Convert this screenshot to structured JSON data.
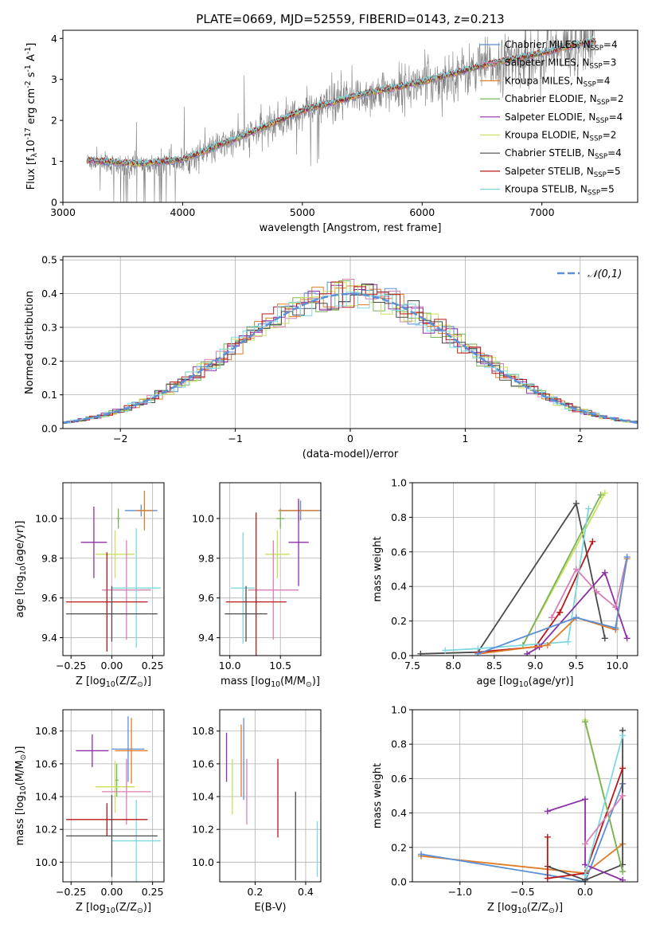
{
  "chart_data": [
    {
      "type": "line",
      "title": "PLATE=0669, MJD=52559, FIBERID=0143, z=0.213",
      "xlabel": "wavelength [Angstrom, rest frame]",
      "ylabel": "Flux [f$_\\lambda$10$^{-17}$ erg cm$^{-2}$ s$^{-1}$ A$^{-1}$]",
      "xlim": [
        3000,
        7800
      ],
      "ylim": [
        0,
        4.2
      ],
      "xticks": [
        3000,
        4000,
        5000,
        6000,
        7000
      ],
      "yticks": [
        0,
        1,
        2,
        3,
        4
      ],
      "data_range": [
        3200,
        7450
      ],
      "grid": false,
      "legend_position": "top-right",
      "series": [
        {
          "name": "Chabrier MILES, N$_{SSP}$=4",
          "color": "#5b8fd6",
          "y_at": [
            [
              3200,
              1.0
            ],
            [
              3600,
              0.9
            ],
            [
              4000,
              1.0
            ],
            [
              4600,
              1.7
            ],
            [
              5000,
              2.2
            ],
            [
              5500,
              2.6
            ],
            [
              6000,
              2.9
            ],
            [
              6500,
              3.3
            ],
            [
              7000,
              3.6
            ],
            [
              7400,
              3.9
            ]
          ]
        },
        {
          "name": "Salpeter MILES, N$_{SSP}$=3",
          "color": "#d87fb5",
          "y_at": [
            [
              3200,
              1.0
            ],
            [
              3600,
              0.9
            ],
            [
              4000,
              1.0
            ],
            [
              4600,
              1.7
            ],
            [
              5000,
              2.2
            ],
            [
              5500,
              2.6
            ],
            [
              6000,
              2.9
            ],
            [
              6500,
              3.3
            ],
            [
              7000,
              3.6
            ],
            [
              7400,
              3.9
            ]
          ]
        },
        {
          "name": "Kroupa MILES, N$_{SSP}$=4",
          "color": "#e07b28",
          "y_at": [
            [
              3200,
              1.0
            ],
            [
              3600,
              0.9
            ],
            [
              4000,
              1.0
            ],
            [
              4600,
              1.7
            ],
            [
              5000,
              2.2
            ],
            [
              5500,
              2.6
            ],
            [
              6000,
              2.9
            ],
            [
              6500,
              3.3
            ],
            [
              7000,
              3.6
            ],
            [
              7400,
              3.9
            ]
          ]
        },
        {
          "name": "Chabrier ELODIE, N$_{SSP}$=2",
          "color": "#7ab35a",
          "y_at": [
            [
              3200,
              1.0
            ],
            [
              3600,
              0.9
            ],
            [
              4000,
              1.0
            ],
            [
              4600,
              1.7
            ],
            [
              5000,
              2.2
            ],
            [
              5500,
              2.6
            ],
            [
              6000,
              2.9
            ],
            [
              6500,
              3.3
            ],
            [
              7000,
              3.6
            ],
            [
              7400,
              3.9
            ]
          ]
        },
        {
          "name": "Salpeter ELODIE, N$_{SSP}$=4",
          "color": "#8b2fa8",
          "y_at": [
            [
              3200,
              1.0
            ],
            [
              3600,
              0.9
            ],
            [
              4000,
              1.0
            ],
            [
              4600,
              1.7
            ],
            [
              5000,
              2.2
            ],
            [
              5500,
              2.6
            ],
            [
              6000,
              2.9
            ],
            [
              6500,
              3.3
            ],
            [
              7000,
              3.6
            ],
            [
              7400,
              3.9
            ]
          ]
        },
        {
          "name": "Kroupa ELODIE, N$_{SSP}$=2",
          "color": "#c8e05a",
          "y_at": [
            [
              3200,
              1.0
            ],
            [
              3600,
              0.9
            ],
            [
              4000,
              1.0
            ],
            [
              4600,
              1.7
            ],
            [
              5000,
              2.2
            ],
            [
              5500,
              2.6
            ],
            [
              6000,
              2.9
            ],
            [
              6500,
              3.3
            ],
            [
              7000,
              3.6
            ],
            [
              7400,
              3.9
            ]
          ]
        },
        {
          "name": "Chabrier STELIB, N$_{SSP}$=4",
          "color": "#4a4a4a",
          "y_at": [
            [
              3200,
              1.0
            ],
            [
              3600,
              0.9
            ],
            [
              4000,
              1.0
            ],
            [
              4600,
              1.7
            ],
            [
              5000,
              2.2
            ],
            [
              5500,
              2.6
            ],
            [
              6000,
              2.9
            ],
            [
              6500,
              3.3
            ],
            [
              7000,
              3.6
            ],
            [
              7400,
              3.9
            ]
          ]
        },
        {
          "name": "Salpeter STELIB, N$_{SSP}$=5",
          "color": "#b81818",
          "y_at": [
            [
              3200,
              1.0
            ],
            [
              3600,
              0.9
            ],
            [
              4000,
              1.0
            ],
            [
              4600,
              1.7
            ],
            [
              5000,
              2.2
            ],
            [
              5500,
              2.6
            ],
            [
              6000,
              2.9
            ],
            [
              6500,
              3.3
            ],
            [
              7000,
              3.6
            ],
            [
              7400,
              3.9
            ]
          ]
        },
        {
          "name": "Kroupa STELIB, N$_{SSP}$=5",
          "color": "#7fd8e0",
          "y_at": [
            [
              3200,
              1.0
            ],
            [
              3600,
              0.9
            ],
            [
              4000,
              1.0
            ],
            [
              4600,
              1.7
            ],
            [
              5000,
              2.2
            ],
            [
              5500,
              2.6
            ],
            [
              6000,
              2.9
            ],
            [
              6500,
              3.3
            ],
            [
              7000,
              3.6
            ],
            [
              7400,
              3.9
            ]
          ]
        }
      ],
      "data_color": "#808080"
    },
    {
      "type": "line",
      "xlabel": "(data-model)/error",
      "ylabel": "Normed distribution",
      "xlim": [
        -2.5,
        2.5
      ],
      "ylim": [
        0,
        0.51
      ],
      "xticks": [
        -2,
        -1,
        0,
        1,
        2
      ],
      "yticks": [
        0.0,
        0.1,
        0.2,
        0.3,
        0.4,
        0.5
      ],
      "grid": true,
      "legend": "$\\mathcal{N}(0,1)$",
      "legend_position": "top-right",
      "normal_color": "#5b8fd6",
      "hist_bin_width": 0.1
    },
    {
      "type": "scatter",
      "xlabel": "Z [log$_{10}$($Z/Z_\\odot$)]",
      "ylabel": "age  [log$_{10}$($age/yr$)]",
      "xlim": [
        -0.3,
        0.32
      ],
      "ylim": [
        9.31,
        10.18
      ],
      "xticks": [
        -0.25,
        0.0,
        0.25
      ],
      "yticks": [
        9.4,
        9.6,
        9.8,
        10.0
      ],
      "grid": true,
      "points": [
        {
          "color": "#5b8fd6",
          "x": 0.18,
          "xerr": 0.1,
          "y": 10.04,
          "yerr": 0.03
        },
        {
          "color": "#e07b28",
          "x": 0.2,
          "xerr": 0.05,
          "y": 10.04,
          "yerr": 0.1
        },
        {
          "color": "#7ab35a",
          "x": 0.04,
          "xerr": 0.01,
          "y": 10.0,
          "yerr": 0.05
        },
        {
          "color": "#8b2fa8",
          "x": -0.11,
          "xerr": 0.08,
          "y": 9.88,
          "yerr": 0.18
        },
        {
          "color": "#c8e05a",
          "x": 0.02,
          "xerr": 0.12,
          "y": 9.82,
          "yerr": 0.12
        },
        {
          "color": "#d87fb5",
          "x": 0.09,
          "xerr": 0.15,
          "y": 9.64,
          "yerr": 0.25
        },
        {
          "color": "#7fd8e0",
          "x": 0.15,
          "xerr": 0.15,
          "y": 9.65,
          "yerr": 0.3
        },
        {
          "color": "#b81818",
          "x": -0.03,
          "xerr": 0.25,
          "y": 9.58,
          "yerr": 0.25
        },
        {
          "color": "#4a4a4a",
          "x": 0.0,
          "xerr": 0.28,
          "y": 9.52,
          "yerr": 0.14
        }
      ]
    },
    {
      "type": "scatter",
      "xlabel": "mass [log$_{10}$($M/M_\\odot$)]",
      "ylabel": "",
      "xlim": [
        9.9,
        10.9
      ],
      "ylim": [
        9.31,
        10.18
      ],
      "xticks": [
        10.0,
        10.5
      ],
      "yticks": [
        9.4,
        9.6,
        9.8,
        10.0
      ],
      "grid": true,
      "points": [
        {
          "color": "#5b8fd6",
          "x": 10.7,
          "xerr": 0.2,
          "y": 10.04,
          "yerr": 0.05
        },
        {
          "color": "#e07b28",
          "x": 10.68,
          "xerr": 0.2,
          "y": 10.04,
          "yerr": 0.05
        },
        {
          "color": "#7ab35a",
          "x": 10.5,
          "xerr": 0.04,
          "y": 10.0,
          "yerr": 0.05
        },
        {
          "color": "#8b2fa8",
          "x": 10.68,
          "xerr": 0.1,
          "y": 9.88,
          "yerr": 0.22
        },
        {
          "color": "#c8e05a",
          "x": 10.47,
          "xerr": 0.12,
          "y": 9.82,
          "yerr": 0.12
        },
        {
          "color": "#d87fb5",
          "x": 10.43,
          "xerr": 0.25,
          "y": 9.64,
          "yerr": 0.25
        },
        {
          "color": "#7fd8e0",
          "x": 10.13,
          "xerr": 0.12,
          "y": 9.65,
          "yerr": 0.28
        },
        {
          "color": "#b81818",
          "x": 10.26,
          "xerr": 0.3,
          "y": 9.58,
          "yerr": 0.45
        },
        {
          "color": "#4a4a4a",
          "x": 10.16,
          "xerr": 0.21,
          "y": 9.52,
          "yerr": 0.14
        }
      ]
    },
    {
      "type": "line",
      "xlabel": "age  [log$_{10}$($age/yr$)]",
      "ylabel": "mass weight",
      "xlim": [
        7.5,
        10.25
      ],
      "ylim": [
        0,
        1.0
      ],
      "xticks": [
        7.5,
        8.0,
        8.5,
        9.0,
        9.5,
        10.0
      ],
      "yticks": [
        0.0,
        0.2,
        0.4,
        0.6,
        0.8,
        1.0
      ],
      "grid": true,
      "series": [
        {
          "color": "#4a4a4a",
          "x": [
            7.6,
            8.3,
            9.5,
            9.85
          ],
          "y": [
            0.01,
            0.02,
            0.88,
            0.1
          ]
        },
        {
          "color": "#b81818",
          "x": [
            8.3,
            9.0,
            9.3,
            9.7
          ],
          "y": [
            0.02,
            0.05,
            0.25,
            0.66
          ]
        },
        {
          "color": "#c8e05a",
          "x": [
            8.85,
            9.85
          ],
          "y": [
            0.06,
            0.94
          ]
        },
        {
          "color": "#7ab35a",
          "x": [
            8.85,
            9.8
          ],
          "y": [
            0.06,
            0.93
          ]
        },
        {
          "color": "#7fd8e0",
          "x": [
            7.9,
            8.3,
            9.4,
            9.65
          ],
          "y": [
            0.03,
            0.04,
            0.08,
            0.85
          ]
        },
        {
          "color": "#8b2fa8",
          "x": [
            8.9,
            9.05,
            9.85,
            10.12
          ],
          "y": [
            0.01,
            0.05,
            0.48,
            0.1
          ]
        },
        {
          "color": "#d87fb5",
          "x": [
            9.2,
            9.5,
            9.75,
            9.98,
            10.12
          ],
          "y": [
            0.22,
            0.5,
            0.37,
            0.28,
            0.57
          ]
        },
        {
          "color": "#e07b28",
          "x": [
            8.3,
            9.15,
            9.5,
            9.98,
            10.12
          ],
          "y": [
            0.01,
            0.06,
            0.22,
            0.15,
            0.56
          ]
        },
        {
          "color": "#5b8fd6",
          "x": [
            8.3,
            9.5,
            9.98,
            10.12
          ],
          "y": [
            0.01,
            0.22,
            0.16,
            0.57
          ]
        }
      ]
    },
    {
      "type": "scatter",
      "xlabel": "Z [log$_{10}$($Z/Z_\\odot$)]",
      "ylabel": "mass [log$_{10}$($M/M_\\odot$)]",
      "xlim": [
        -0.3,
        0.32
      ],
      "ylim": [
        9.88,
        10.93
      ],
      "xticks": [
        -0.25,
        0.0,
        0.25
      ],
      "yticks": [
        10.0,
        10.2,
        10.4,
        10.6,
        10.8
      ],
      "grid": true,
      "points": [
        {
          "color": "#5b8fd6",
          "x": 0.1,
          "xerr": 0.1,
          "y": 10.69,
          "yerr": 0.2
        },
        {
          "color": "#e07b28",
          "x": 0.12,
          "xerr": 0.1,
          "y": 10.68,
          "yerr": 0.2
        },
        {
          "color": "#7ab35a",
          "x": 0.03,
          "xerr": 0.01,
          "y": 10.5,
          "yerr": 0.1
        },
        {
          "color": "#8b2fa8",
          "x": -0.12,
          "xerr": 0.1,
          "y": 10.68,
          "yerr": 0.1
        },
        {
          "color": "#c8e05a",
          "x": 0.02,
          "xerr": 0.12,
          "y": 10.46,
          "yerr": 0.16
        },
        {
          "color": "#d87fb5",
          "x": 0.09,
          "xerr": 0.15,
          "y": 10.43,
          "yerr": 0.2
        },
        {
          "color": "#7fd8e0",
          "x": 0.15,
          "xerr": 0.15,
          "y": 10.13,
          "yerr": 0.25
        },
        {
          "color": "#b81818",
          "x": -0.03,
          "xerr": 0.25,
          "y": 10.26,
          "yerr": 0.1
        },
        {
          "color": "#4a4a4a",
          "x": 0.0,
          "xerr": 0.28,
          "y": 10.16,
          "yerr": 0.25
        }
      ]
    },
    {
      "type": "scatter",
      "xlabel": "E(B-V)",
      "ylabel": "",
      "xlim": [
        0.06,
        0.46
      ],
      "ylim": [
        9.88,
        10.93
      ],
      "xticks": [
        0.2,
        0.4
      ],
      "yticks": [
        10.0,
        10.2,
        10.4,
        10.6,
        10.8
      ],
      "grid": true,
      "points": [
        {
          "color": "#8b2fa8",
          "x": 0.087,
          "y": 10.64,
          "yerr": 0.15
        },
        {
          "color": "#c8e05a",
          "x": 0.11,
          "y": 10.46,
          "yerr": 0.17
        },
        {
          "color": "#e07b28",
          "x": 0.145,
          "y": 10.62,
          "yerr": 0.22
        },
        {
          "color": "#5b8fd6",
          "x": 0.155,
          "y": 10.63,
          "yerr": 0.25
        },
        {
          "color": "#d87fb5",
          "x": 0.167,
          "y": 10.43,
          "yerr": 0.2
        },
        {
          "color": "#b81818",
          "x": 0.29,
          "y": 10.39,
          "yerr": 0.24
        },
        {
          "color": "#4a4a4a",
          "x": 0.36,
          "y": 10.16,
          "yerr": 0.27
        },
        {
          "color": "#7fd8e0",
          "x": 0.446,
          "y": 10.08,
          "yerr": 0.17
        }
      ]
    },
    {
      "type": "line",
      "xlabel": "Z [log$_{10}$($Z/Z_\\odot$)]",
      "ylabel": "mass weight",
      "xlim": [
        -1.38,
        0.42
      ],
      "ylim": [
        0,
        1.0
      ],
      "xticks": [
        -1.0,
        -0.5,
        0.0
      ],
      "yticks": [
        0.0,
        0.2,
        0.4,
        0.6,
        0.8,
        1.0
      ],
      "grid": true,
      "series": [
        {
          "color": "#e07b28",
          "x": [
            -1.31,
            0.0,
            0.3,
            0.3
          ],
          "y": [
            0.15,
            0.05,
            0.22,
            0.57
          ]
        },
        {
          "color": "#5b8fd6",
          "x": [
            -1.31,
            -0.3,
            0.0,
            0.3
          ],
          "y": [
            0.16,
            0.04,
            0.0,
            0.57
          ]
        },
        {
          "color": "#4a4a4a",
          "x": [
            -0.3,
            0.0,
            0.3,
            0.3
          ],
          "y": [
            0.09,
            0.01,
            0.1,
            0.88
          ]
        },
        {
          "color": "#b81818",
          "x": [
            -0.3,
            -0.3,
            0.0,
            0.3
          ],
          "y": [
            0.26,
            0.02,
            0.05,
            0.66
          ]
        },
        {
          "color": "#8b2fa8",
          "x": [
            -0.3,
            0.0,
            0.0,
            0.3
          ],
          "y": [
            0.41,
            0.48,
            0.1,
            0.01
          ]
        },
        {
          "color": "#c8e05a",
          "x": [
            0.0,
            0.3
          ],
          "y": [
            0.94,
            0.06
          ]
        },
        {
          "color": "#7ab35a",
          "x": [
            0.0,
            0.3
          ],
          "y": [
            0.93,
            0.06
          ]
        },
        {
          "color": "#7fd8e0",
          "x": [
            0.0,
            0.3
          ],
          "y": [
            0.04,
            0.85
          ]
        },
        {
          "color": "#d87fb5",
          "x": [
            0.0,
            0.3
          ],
          "y": [
            0.22,
            0.5
          ]
        }
      ]
    }
  ]
}
